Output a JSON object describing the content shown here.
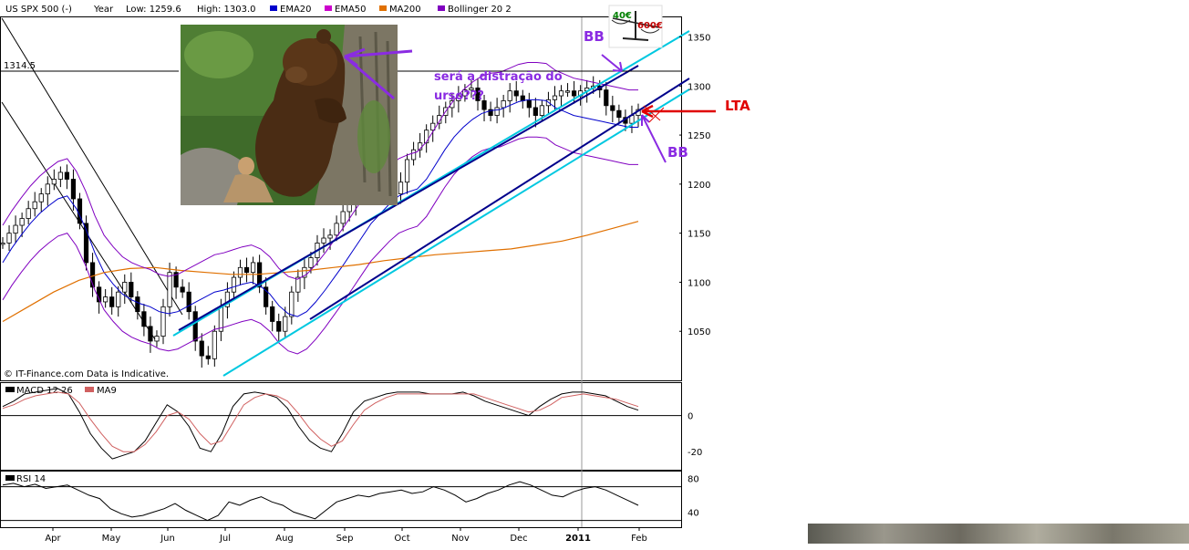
{
  "header": {
    "title": "US SPX 500 (-)",
    "period": "Year",
    "low_label": "Low: 1259.6",
    "high_label": "High: 1303.0",
    "legend": [
      {
        "name": "EMA20",
        "color": "#0000cc"
      },
      {
        "name": "EMA50",
        "color": "#cc00cc"
      },
      {
        "name": "MA200",
        "color": "#e07000"
      },
      {
        "name": "Bollinger 20 2",
        "color": "#8000c0"
      }
    ]
  },
  "price_level_label": "1314.5",
  "copyright": "© IT-Finance.com Data is Indicative.",
  "annotations": {
    "bear_text_line1": "será a distração do",
    "bear_text_line2": "urso???",
    "bb_top": "BB",
    "bb_bottom": "BB",
    "lta": "LTA",
    "scale_left": "40€",
    "scale_right": "600€"
  },
  "colors": {
    "candle": "#000000",
    "ema20": "#0000cc",
    "ema50": "#cc00cc",
    "ma200": "#e07000",
    "bollinger": "#8000c0",
    "channel_dark": "#00008b",
    "channel_light": "#00c8e0",
    "annotation_purple": "#8a2be2",
    "lta_arrow": "#e00000",
    "macd_signal": "#d06060"
  },
  "chart_data": [
    {
      "type": "candlestick",
      "title": "US SPX 500 (-)",
      "x_ticks": [
        "Apr",
        "May",
        "Jun",
        "Jul",
        "Aug",
        "Sep",
        "Oct",
        "Nov",
        "Dec",
        "2011",
        "Feb"
      ],
      "y_ticks": [
        1050,
        1100,
        1150,
        1200,
        1250,
        1300,
        1350
      ],
      "ylim": [
        1000,
        1370
      ],
      "grid": false,
      "legend_position": "top",
      "series": [
        {
          "name": "Price",
          "values": [
            1140,
            1150,
            1158,
            1165,
            1175,
            1182,
            1190,
            1200,
            1205,
            1212,
            1205,
            1185,
            1160,
            1120,
            1095,
            1080,
            1085,
            1075,
            1090,
            1100,
            1085,
            1070,
            1055,
            1040,
            1045,
            1075,
            1110,
            1095,
            1090,
            1070,
            1040,
            1025,
            1022,
            1050,
            1075,
            1090,
            1105,
            1115,
            1110,
            1120,
            1095,
            1075,
            1060,
            1050,
            1065,
            1090,
            1105,
            1115,
            1125,
            1140,
            1145,
            1148,
            1160,
            1172,
            1180,
            1190,
            1200,
            1210,
            1205,
            1192,
            1185,
            1190,
            1202,
            1225,
            1235,
            1242,
            1255,
            1262,
            1270,
            1278,
            1285,
            1290,
            1296,
            1298,
            1285,
            1276,
            1270,
            1278,
            1285,
            1295,
            1290,
            1285,
            1278,
            1270,
            1280,
            1286,
            1290,
            1295,
            1295,
            1290,
            1295,
            1298,
            1300,
            1296,
            1280,
            1275,
            1268,
            1262,
            1270,
            1276
          ]
        },
        {
          "name": "EMA20",
          "values": [
            1120,
            1135,
            1148,
            1160,
            1170,
            1178,
            1185,
            1188,
            1175,
            1155,
            1130,
            1110,
            1098,
            1088,
            1082,
            1078,
            1075,
            1070,
            1068,
            1070,
            1075,
            1080,
            1085,
            1090,
            1092,
            1095,
            1098,
            1100,
            1096,
            1088,
            1076,
            1068,
            1065,
            1070,
            1080,
            1092,
            1105,
            1118,
            1132,
            1146,
            1160,
            1170,
            1180,
            1188,
            1192,
            1195,
            1205,
            1220,
            1235,
            1248,
            1258,
            1266,
            1272,
            1275,
            1276,
            1280,
            1284,
            1286,
            1286,
            1285,
            1278,
            1274,
            1270,
            1268,
            1266,
            1264,
            1262,
            1260,
            1258,
            1258
          ]
        },
        {
          "name": "MA200",
          "values": [
            1060,
            1075,
            1090,
            1102,
            1110,
            1114,
            1115,
            1112,
            1110,
            1108,
            1108,
            1110,
            1112,
            1115,
            1118,
            1122,
            1125,
            1128,
            1130,
            1132,
            1134,
            1138,
            1142,
            1148,
            1155,
            1162
          ]
        }
      ]
    },
    {
      "type": "line",
      "title": "MACD 12 26",
      "y_ticks": [
        -20,
        0
      ],
      "ylim": [
        -30,
        18
      ],
      "series": [
        {
          "name": "MACD 12 26",
          "values": [
            5,
            8,
            12,
            13,
            14,
            15,
            12,
            2,
            -10,
            -18,
            -24,
            -22,
            -20,
            -14,
            -4,
            6,
            2,
            -6,
            -18,
            -20,
            -10,
            5,
            12,
            13,
            12,
            10,
            4,
            -6,
            -14,
            -18,
            -20,
            -10,
            2,
            8,
            10,
            12,
            13,
            13,
            13,
            12,
            12,
            12,
            13,
            11,
            8,
            6,
            4,
            2,
            0,
            5,
            9,
            12,
            13,
            13,
            12,
            11,
            8,
            5,
            3
          ]
        },
        {
          "name": "MA9",
          "values": [
            4,
            6,
            9,
            11,
            12,
            13,
            12,
            7,
            -2,
            -10,
            -17,
            -20,
            -20,
            -16,
            -9,
            0,
            2,
            -2,
            -10,
            -16,
            -14,
            -4,
            6,
            10,
            12,
            11,
            8,
            1,
            -7,
            -13,
            -17,
            -14,
            -5,
            3,
            7,
            10,
            12,
            12,
            12,
            12,
            12,
            12,
            12,
            12,
            10,
            8,
            6,
            4,
            2,
            3,
            6,
            10,
            11,
            12,
            11,
            10,
            9,
            7,
            5
          ]
        }
      ]
    },
    {
      "type": "line",
      "title": "RSI 14",
      "y_ticks": [
        40,
        80
      ],
      "ylim": [
        22,
        88
      ],
      "series": [
        {
          "name": "RSI 14",
          "values": [
            72,
            74,
            70,
            73,
            68,
            70,
            72,
            66,
            60,
            56,
            44,
            38,
            34,
            36,
            40,
            44,
            50,
            42,
            36,
            30,
            36,
            52,
            48,
            54,
            58,
            52,
            48,
            40,
            36,
            32,
            42,
            52,
            56,
            60,
            58,
            62,
            64,
            66,
            62,
            64,
            70,
            66,
            60,
            52,
            56,
            62,
            66,
            72,
            76,
            72,
            66,
            60,
            58,
            64,
            68,
            70,
            66,
            60,
            54,
            48
          ]
        }
      ]
    }
  ]
}
